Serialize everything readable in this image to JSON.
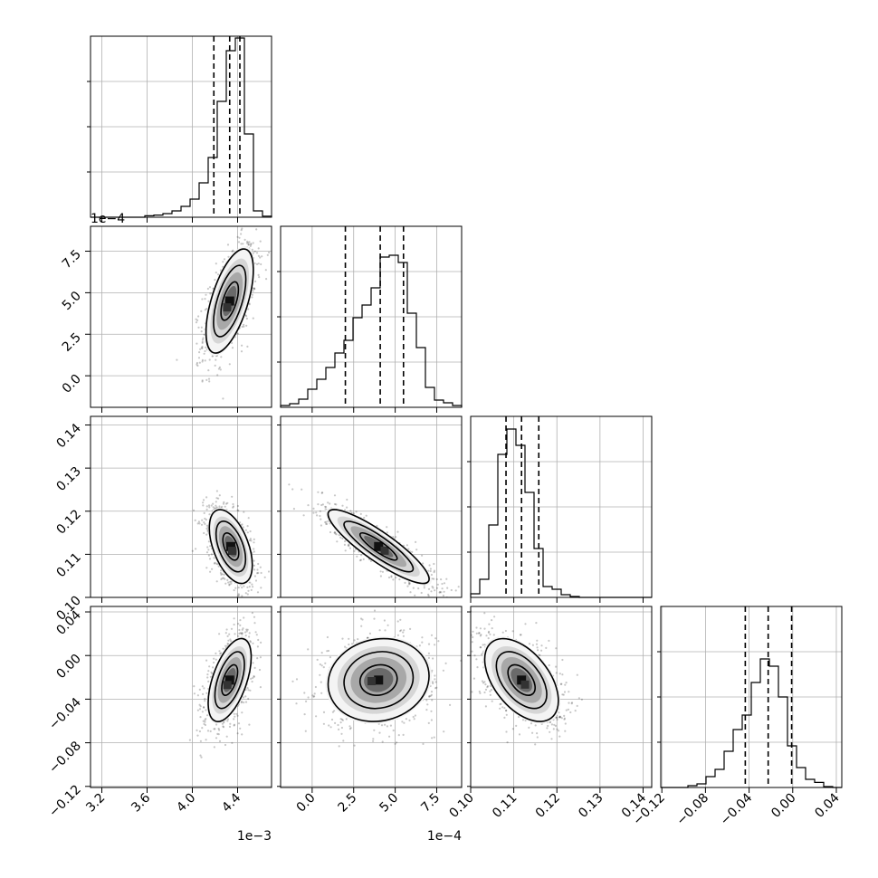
{
  "chart_data": {
    "type": "corner",
    "grid": true,
    "parameters": [
      {
        "range": [
          3.1,
          4.7
        ],
        "ticks": [
          3.2,
          3.6,
          4.0,
          4.4
        ],
        "tick_labels": [
          "3.2",
          "3.6",
          "4.0",
          "4.4"
        ],
        "offset_label": "1e−3",
        "quantiles": [
          4.19,
          4.33,
          4.42
        ],
        "hist_edges": [
          3.1,
          3.18,
          3.26,
          3.34,
          3.42,
          3.5,
          3.58,
          3.66,
          3.74,
          3.82,
          3.9,
          3.98,
          4.06,
          4.14,
          4.22,
          4.3,
          4.38,
          4.46,
          4.54,
          4.62,
          4.7
        ],
        "hist_counts": [
          0,
          0,
          0,
          0,
          0,
          0,
          0.008,
          0.012,
          0.02,
          0.035,
          0.06,
          0.1,
          0.19,
          0.33,
          0.64,
          0.92,
          0.99,
          0.46,
          0.035,
          0.006
        ]
      },
      {
        "range": [
          -1.9,
          9.0
        ],
        "ticks": [
          0.0,
          2.5,
          5.0,
          7.5
        ],
        "tick_labels": [
          "0.0",
          "2.5",
          "5.0",
          "7.5"
        ],
        "offset_label": "1e−4",
        "quantiles": [
          2.0,
          4.1,
          5.5
        ],
        "hist_edges": [
          -1.9,
          -1.355,
          -0.81,
          -0.265,
          0.28,
          0.825,
          1.37,
          1.915,
          2.46,
          3.005,
          3.55,
          4.095,
          4.64,
          5.185,
          5.73,
          6.275,
          6.82,
          7.365,
          7.91,
          8.455,
          9.0
        ],
        "hist_counts": [
          0.01,
          0.02,
          0.045,
          0.1,
          0.155,
          0.22,
          0.3,
          0.37,
          0.495,
          0.565,
          0.66,
          0.83,
          0.84,
          0.8,
          0.52,
          0.33,
          0.11,
          0.04,
          0.025,
          0.01
        ]
      },
      {
        "range": [
          0.1,
          0.142
        ],
        "ticks": [
          0.1,
          0.11,
          0.12,
          0.13,
          0.14
        ],
        "tick_labels": [
          "0.10",
          "0.11",
          "0.12",
          "0.13",
          "0.14"
        ],
        "offset_label": "",
        "quantiles": [
          0.1082,
          0.1118,
          0.1158
        ],
        "hist_edges": [
          0.1,
          0.1021,
          0.1042,
          0.1063,
          0.1084,
          0.1105,
          0.1126,
          0.1147,
          0.1168,
          0.1189,
          0.121,
          0.1231,
          0.1252,
          0.1273,
          0.1294,
          0.1315,
          0.1336,
          0.1357,
          0.1378,
          0.1399,
          0.142
        ],
        "hist_counts": [
          0.02,
          0.1,
          0.4,
          0.79,
          0.93,
          0.84,
          0.58,
          0.27,
          0.06,
          0.045,
          0.015,
          0.005,
          0,
          0,
          0,
          0,
          0,
          0,
          0,
          0
        ]
      },
      {
        "range": [
          -0.121,
          0.045
        ],
        "ticks": [
          -0.12,
          -0.08,
          -0.04,
          0.0,
          0.04
        ],
        "tick_labels": [
          "−0.12",
          "−0.08",
          "−0.04",
          "0.00",
          "0.04"
        ],
        "offset_label": "",
        "quantiles": [
          -0.0435,
          -0.0225,
          -0.001
        ],
        "hist_edges": [
          -0.121,
          -0.1127,
          -0.1044,
          -0.0961,
          -0.0878,
          -0.0795,
          -0.0712,
          -0.0629,
          -0.0546,
          -0.0463,
          -0.038,
          -0.0297,
          -0.0214,
          -0.0131,
          -0.0048,
          0.0035,
          0.0118,
          0.0201,
          0.0284,
          0.0367,
          0.045
        ],
        "hist_counts": [
          0,
          0,
          0,
          0.01,
          0.02,
          0.06,
          0.1,
          0.2,
          0.32,
          0.4,
          0.58,
          0.71,
          0.67,
          0.5,
          0.23,
          0.11,
          0.045,
          0.028,
          0.005,
          0
        ]
      }
    ],
    "pairs": [
      {
        "x": 0,
        "y": 1,
        "center": [
          4.33,
          4.5
        ],
        "spread": [
          0.11,
          1.65
        ],
        "corr": 0.6
      },
      {
        "x": 0,
        "y": 2,
        "center": [
          4.34,
          0.1118
        ],
        "spread": [
          0.1,
          0.0045
        ],
        "corr": -0.5
      },
      {
        "x": 1,
        "y": 2,
        "center": [
          4.0,
          0.1118
        ],
        "spread": [
          1.6,
          0.0045
        ],
        "corr": -0.88
      },
      {
        "x": 0,
        "y": 3,
        "center": [
          4.33,
          -0.0225
        ],
        "spread": [
          0.1,
          0.02
        ],
        "corr": 0.55
      },
      {
        "x": 1,
        "y": 3,
        "center": [
          4.0,
          -0.0225
        ],
        "spread": [
          1.6,
          0.02
        ],
        "corr": 0.1
      },
      {
        "x": 2,
        "y": 3,
        "center": [
          0.1118,
          -0.0225
        ],
        "spread": [
          0.0045,
          0.02
        ],
        "corr": -0.5
      }
    ]
  }
}
